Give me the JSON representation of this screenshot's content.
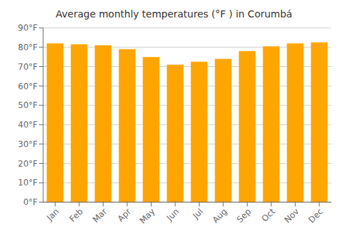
{
  "chart_data": {
    "type": "bar",
    "title": "Average monthly temperatures (°F ) in Corumbá",
    "categories": [
      "Jan",
      "Feb",
      "Mar",
      "Apr",
      "May",
      "Jun",
      "Jul",
      "Aug",
      "Sep",
      "Oct",
      "Nov",
      "Dec"
    ],
    "values": [
      82,
      81.5,
      81,
      79,
      75,
      71,
      72.5,
      74,
      78,
      80.5,
      82,
      82.5
    ],
    "color": "#FFA500",
    "ylim": [
      0,
      90
    ],
    "yticks": [
      {
        "value": 0,
        "label": "0°F"
      },
      {
        "value": 10,
        "label": "10°F"
      },
      {
        "value": 20,
        "label": "20°F"
      },
      {
        "value": 30,
        "label": "30°F"
      },
      {
        "value": 40,
        "label": "40°F"
      },
      {
        "value": 50,
        "label": "50°F"
      },
      {
        "value": 60,
        "label": "60°F"
      },
      {
        "value": 70,
        "label": "70°F"
      },
      {
        "value": 80,
        "label": "80°F"
      },
      {
        "value": 90,
        "label": "90°F"
      }
    ],
    "grid": true
  }
}
